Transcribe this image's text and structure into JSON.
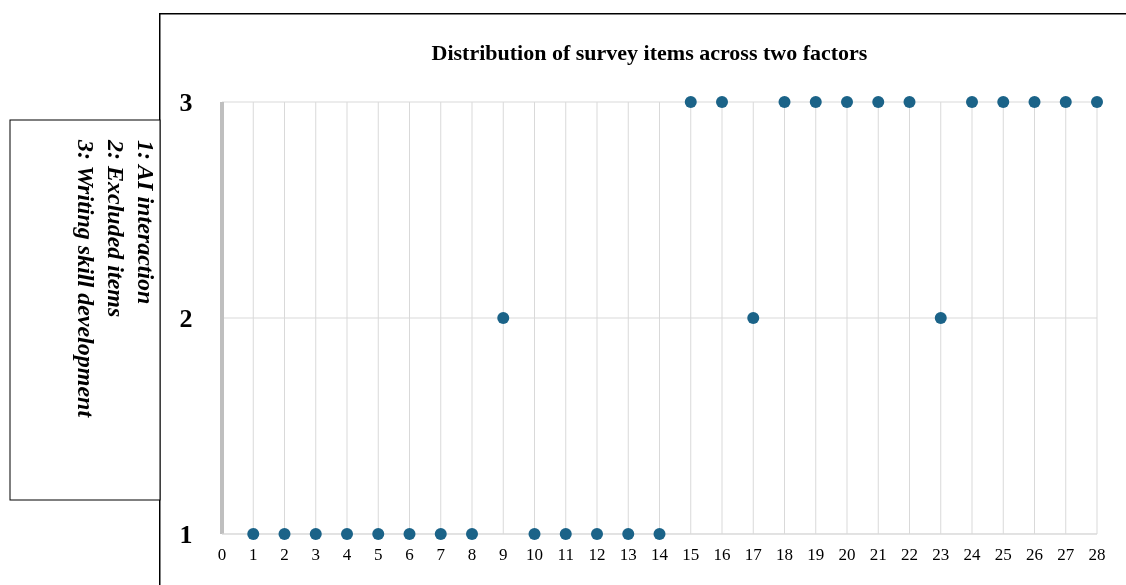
{
  "chart_data": {
    "type": "scatter",
    "title": "Distribution of survey items across two factors",
    "x": [
      1,
      2,
      3,
      4,
      5,
      6,
      7,
      8,
      9,
      10,
      11,
      12,
      13,
      14,
      15,
      16,
      17,
      18,
      19,
      20,
      21,
      22,
      23,
      24,
      25,
      26,
      27,
      28
    ],
    "series": [
      {
        "color": "#1b6388",
        "values": [
          1,
          1,
          1,
          1,
          1,
          1,
          1,
          1,
          2,
          1,
          1,
          1,
          1,
          1,
          3,
          3,
          2,
          3,
          3,
          3,
          3,
          3,
          2,
          3,
          3,
          3,
          3,
          3
        ]
      }
    ],
    "xlim": [
      0,
      28
    ],
    "xticks": [
      0,
      1,
      2,
      3,
      4,
      5,
      6,
      7,
      8,
      9,
      10,
      11,
      12,
      13,
      14,
      15,
      16,
      17,
      18,
      19,
      20,
      21,
      22,
      23,
      24,
      25,
      26,
      27,
      28
    ],
    "ylim": [
      1,
      3
    ],
    "yticks": [
      1,
      2,
      3
    ],
    "grid": true,
    "marker": "circle",
    "annotations": [
      "1: AI interaction",
      "2: Excluded items",
      "3: Writing skill development"
    ]
  }
}
